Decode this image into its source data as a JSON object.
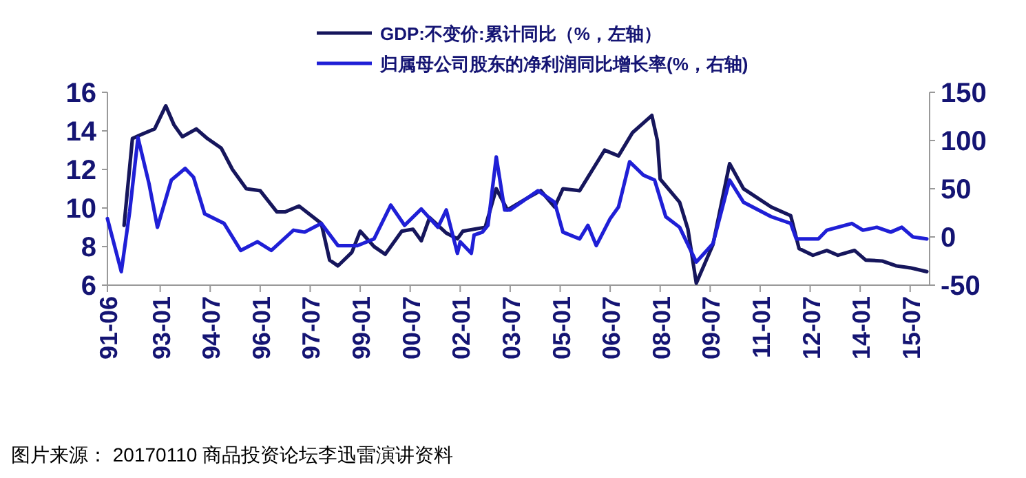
{
  "chart_data": {
    "type": "line",
    "x": [
      "1991-06",
      "1991-11",
      "1992-02",
      "1992-05",
      "1992-09",
      "1992-12",
      "1993-05",
      "1993-10",
      "1994-01",
      "1994-05",
      "1994-12",
      "1995-06",
      "1995-12",
      "1996-05",
      "1997-01",
      "1997-05",
      "1997-11",
      "1998-05",
      "1998-12",
      "1999-06",
      "1999-12",
      "2000-05",
      "2000-11",
      "2001-05",
      "2001-08",
      "2001-12",
      "2002-01",
      "2002-05",
      "2002-06",
      "2002-09",
      "2002-11",
      "2003-02",
      "2003-05",
      "2003-07",
      "2004-05",
      "2004-11",
      "2005-02",
      "2005-08",
      "2005-11",
      "2006-02",
      "2006-07",
      "2006-10",
      "2007-02",
      "2007-07",
      "2007-11",
      "2008-03",
      "2008-08",
      "2009-02",
      "2009-08",
      "2010-02",
      "2010-07",
      "2011-05",
      "2011-12",
      "2012-02",
      "2012-10",
      "2013-01",
      "2013-10",
      "2014-02",
      "2014-07",
      "2014-12",
      "2015-04",
      "2015-08",
      "2016-01"
    ],
    "series": [
      {
        "name": "GDP:不变价:累计同比（%，左轴）",
        "color": "#16165c",
        "axis": "y",
        "x": [
          "1991-12",
          "1992-03",
          "1992-06",
          "1992-11",
          "1993-03",
          "1993-06",
          "1993-09",
          "1994-02",
          "1994-06",
          "1994-11",
          "1995-03",
          "1995-08",
          "1996-01",
          "1996-07",
          "1996-10",
          "1997-03",
          "1997-11",
          "1998-02",
          "1998-05",
          "1998-10",
          "1999-01",
          "1999-06",
          "1999-10",
          "2000-04",
          "2000-08",
          "2000-11",
          "2001-02",
          "2001-08",
          "2001-12",
          "2002-02",
          "2002-06",
          "2002-10",
          "2003-02",
          "2003-06",
          "2004-01",
          "2004-06",
          "2004-11",
          "2005-02",
          "2005-08",
          "2006-05",
          "2006-10",
          "2007-03",
          "2007-10",
          "2007-12",
          "2008-01",
          "2008-08",
          "2008-11",
          "2009-02",
          "2009-08",
          "2010-02",
          "2010-07",
          "2011-05",
          "2011-12",
          "2012-03",
          "2012-08",
          "2013-01",
          "2013-05",
          "2013-11",
          "2014-03",
          "2014-09",
          "2015-02",
          "2015-07",
          "2016-01"
        ],
        "values": [
          9.1,
          13.6,
          13.8,
          14.1,
          15.3,
          14.3,
          13.7,
          14.1,
          13.6,
          13.1,
          12.0,
          11.0,
          10.9,
          9.8,
          9.8,
          10.1,
          9.2,
          7.3,
          7.0,
          7.7,
          8.8,
          8.0,
          7.6,
          8.8,
          8.9,
          8.3,
          9.5,
          8.7,
          8.4,
          8.8,
          8.9,
          9.0,
          11.0,
          9.9,
          10.5,
          10.9,
          10.05,
          11.0,
          10.9,
          13.0,
          12.7,
          13.9,
          14.8,
          13.5,
          11.5,
          10.3,
          8.9,
          6.1,
          8.1,
          12.3,
          11.0,
          10.05,
          9.6,
          7.9,
          7.55,
          7.8,
          7.55,
          7.8,
          7.3,
          7.25,
          7.0,
          6.9,
          6.7
        ]
      },
      {
        "name": "归属母公司股东的净利润同比增长率(%，右轴)",
        "color": "#1f1fd6",
        "axis": "y2",
        "values": [
          19,
          -36,
          26,
          103,
          55,
          10,
          59,
          71,
          62,
          24,
          14,
          -14,
          -5,
          -14,
          7,
          5,
          14,
          -9,
          -9,
          -2,
          33,
          12,
          29,
          10,
          28,
          -17,
          -5,
          -17,
          2,
          5,
          12,
          83,
          28,
          28,
          48,
          36,
          5,
          -2,
          12,
          -9,
          19,
          31,
          78,
          64,
          59,
          21,
          10,
          -26,
          -7,
          59,
          36,
          21,
          14,
          -2,
          -2,
          7,
          14,
          7,
          10,
          5,
          10,
          0,
          -2
        ]
      }
    ],
    "xlim": [
      "1991-06",
      "2016-02"
    ],
    "xticks": [
      {
        "value": "1991-06",
        "label": "91-06"
      },
      {
        "value": "1993-01",
        "label": "93-01"
      },
      {
        "value": "1994-07",
        "label": "94-07"
      },
      {
        "value": "1996-01",
        "label": "96-01"
      },
      {
        "value": "1997-07",
        "label": "97-07"
      },
      {
        "value": "1999-01",
        "label": "99-01"
      },
      {
        "value": "2000-07",
        "label": "00-07"
      },
      {
        "value": "2002-01",
        "label": "02-01"
      },
      {
        "value": "2003-07",
        "label": "03-07"
      },
      {
        "value": "2005-01",
        "label": "05-01"
      },
      {
        "value": "2006-07",
        "label": "06-07"
      },
      {
        "value": "2008-01",
        "label": "08-01"
      },
      {
        "value": "2009-07",
        "label": "09-07"
      },
      {
        "value": "2011-01",
        "label": "11-01"
      },
      {
        "value": "2012-07",
        "label": "12-07"
      },
      {
        "value": "2014-01",
        "label": "14-01"
      },
      {
        "value": "2015-07",
        "label": "15-07"
      }
    ],
    "ylim": [
      6,
      16
    ],
    "yticks": [
      6,
      8,
      10,
      12,
      14,
      16
    ],
    "y2lim": [
      -50,
      150
    ],
    "y2ticks": [
      -50,
      0,
      50,
      100,
      150
    ],
    "legend": "top",
    "grid": false,
    "annotations": [
      "图片来源： 20170110 商品投资论坛李迅雷演讲资料"
    ]
  }
}
